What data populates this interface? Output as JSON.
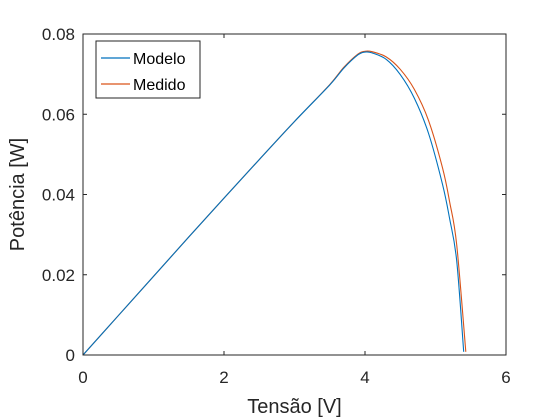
{
  "chart_data": {
    "type": "line",
    "title": "",
    "xlabel": "Tensão [V]",
    "ylabel": "Potência [W]",
    "xlim": [
      0,
      6
    ],
    "ylim": [
      0,
      0.08
    ],
    "x_ticks": [
      0,
      2,
      4,
      6
    ],
    "x_tick_labels": [
      "0",
      "2",
      "4",
      "6"
    ],
    "y_ticks": [
      0,
      0.02,
      0.04,
      0.06,
      0.08
    ],
    "y_tick_labels": [
      "0",
      "0.02",
      "0.04",
      "0.06",
      "0.08"
    ],
    "grid": false,
    "legend_position": "top-left",
    "series": [
      {
        "name": "Modelo",
        "color": "#0072BD",
        "x": [
          0,
          0.5,
          1,
          1.5,
          2,
          2.5,
          3,
          3.5,
          3.7,
          3.9,
          4.0,
          4.1,
          4.3,
          4.5,
          4.7,
          4.9,
          5.1,
          5.2,
          5.3,
          5.4
        ],
        "y": [
          0,
          0.0098,
          0.0196,
          0.0294,
          0.0391,
          0.0487,
          0.0582,
          0.0673,
          0.0715,
          0.0748,
          0.0755,
          0.0753,
          0.0737,
          0.0699,
          0.064,
          0.0553,
          0.0425,
          0.034,
          0.0236,
          0.0008
        ]
      },
      {
        "name": "Medido",
        "color": "#D95319",
        "x": [
          0,
          0.5,
          1,
          1.5,
          2,
          2.5,
          3,
          3.5,
          3.7,
          3.9,
          4.0,
          4.1,
          4.3,
          4.5,
          4.7,
          4.9,
          5.1,
          5.2,
          5.3,
          5.43
        ],
        "y": [
          0,
          0.0098,
          0.0196,
          0.0294,
          0.0391,
          0.0487,
          0.0582,
          0.0674,
          0.0717,
          0.075,
          0.0757,
          0.0756,
          0.0743,
          0.0712,
          0.0662,
          0.0585,
          0.0466,
          0.0382,
          0.0276,
          0.0008
        ]
      }
    ]
  }
}
